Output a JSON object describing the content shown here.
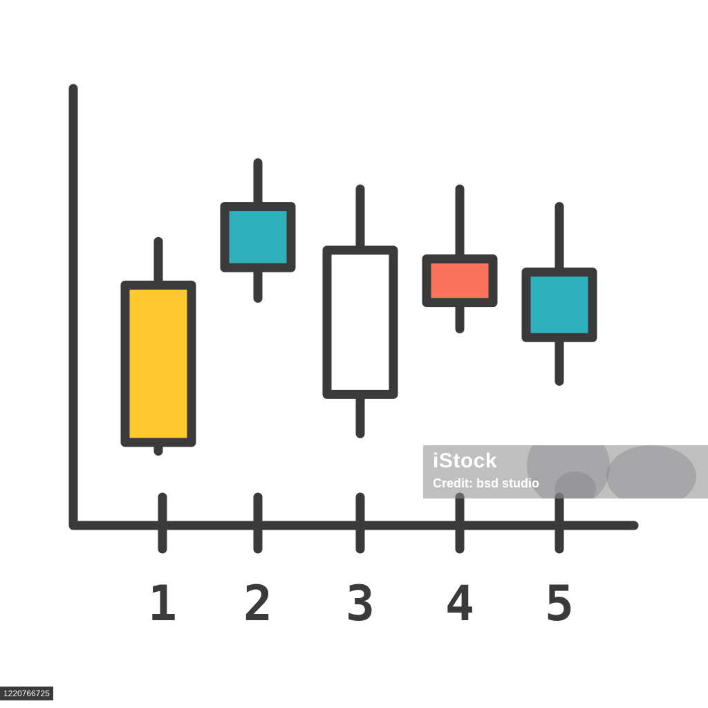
{
  "colors": {
    "outline": "#3a3a3a",
    "yellow": "#fec92e",
    "teal": "#2fb0bb",
    "coral": "#fa735e",
    "white": "#ffffff"
  },
  "chart_data": {
    "type": "candlestick",
    "title": "",
    "xlabel": "",
    "ylabel": "",
    "categories": [
      "1",
      "2",
      "3",
      "4",
      "5"
    ],
    "ylim": [
      0,
      10
    ],
    "grid": false,
    "candles": [
      {
        "x": "1",
        "high": 6.5,
        "low": 1.7,
        "open": 1.9,
        "close": 5.5,
        "color": "#fec92e"
      },
      {
        "x": "2",
        "high": 8.3,
        "low": 5.2,
        "open": 7.3,
        "close": 5.9,
        "color": "#2fb0bb"
      },
      {
        "x": "3",
        "high": 7.7,
        "low": 2.1,
        "open": 6.3,
        "close": 3.0,
        "color": "#ffffff"
      },
      {
        "x": "4",
        "high": 7.7,
        "low": 4.5,
        "open": 6.1,
        "close": 5.1,
        "color": "#fa735e"
      },
      {
        "x": "5",
        "high": 7.3,
        "low": 3.3,
        "open": 5.8,
        "close": 4.3,
        "color": "#2fb0bb"
      }
    ]
  },
  "watermark": {
    "logo": "iStock",
    "credit": "Credit: bsd studio"
  },
  "image_id": "1220766725"
}
